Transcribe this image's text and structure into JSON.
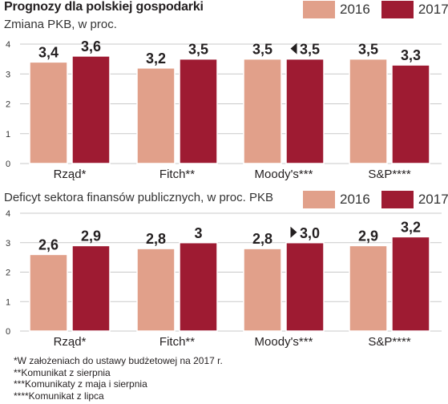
{
  "title": "Prognozy dla polskiej gospodarki",
  "colors": {
    "c2016": "#e1a08a",
    "c2017": "#9e1b32"
  },
  "legend": {
    "l2016": "2016",
    "l2017": "2017"
  },
  "chart_data": [
    {
      "type": "bar",
      "subtitle": "Zmiana PKB, w proc.",
      "categories": [
        "Rząd*",
        "Fitch**",
        "Moody's***",
        "S&P****"
      ],
      "series": [
        {
          "name": "2016",
          "values": [
            3.4,
            3.2,
            3.5,
            3.5
          ]
        },
        {
          "name": "2017",
          "values": [
            3.6,
            3.5,
            3.5,
            3.3
          ]
        }
      ],
      "value_labels": {
        "2016": [
          "3,4",
          "3,2",
          "3,5",
          "3,5"
        ],
        "2017": [
          "3,6",
          "3,5",
          "3,5",
          "3,3"
        ]
      },
      "ylim": [
        0,
        4
      ],
      "yticks": [
        0,
        1,
        2,
        3,
        4
      ],
      "grid": true
    },
    {
      "type": "bar",
      "subtitle": "Deficyt sektora finansów publicznych, w proc. PKB",
      "categories": [
        "Rząd*",
        "Fitch**",
        "Moody's***",
        "S&P****"
      ],
      "series": [
        {
          "name": "2016",
          "values": [
            2.6,
            2.8,
            2.8,
            2.9
          ]
        },
        {
          "name": "2017",
          "values": [
            2.9,
            3.0,
            3.0,
            3.2
          ]
        }
      ],
      "value_labels": {
        "2016": [
          "2,6",
          "2,8",
          "2,8",
          "2,9"
        ],
        "2017": [
          "2,9",
          "3",
          "3,0",
          "3,2"
        ]
      },
      "ylim": [
        0,
        4
      ],
      "yticks": [
        0,
        1,
        2,
        3,
        4
      ],
      "grid": true
    }
  ],
  "footnotes": [
    "*W założeniach do ustawy budżetowej na 2017 r.",
    "**Komunikat z sierpnia",
    "***Komunikaty z maja i sierpnia",
    "****Komunikat z lipca"
  ]
}
